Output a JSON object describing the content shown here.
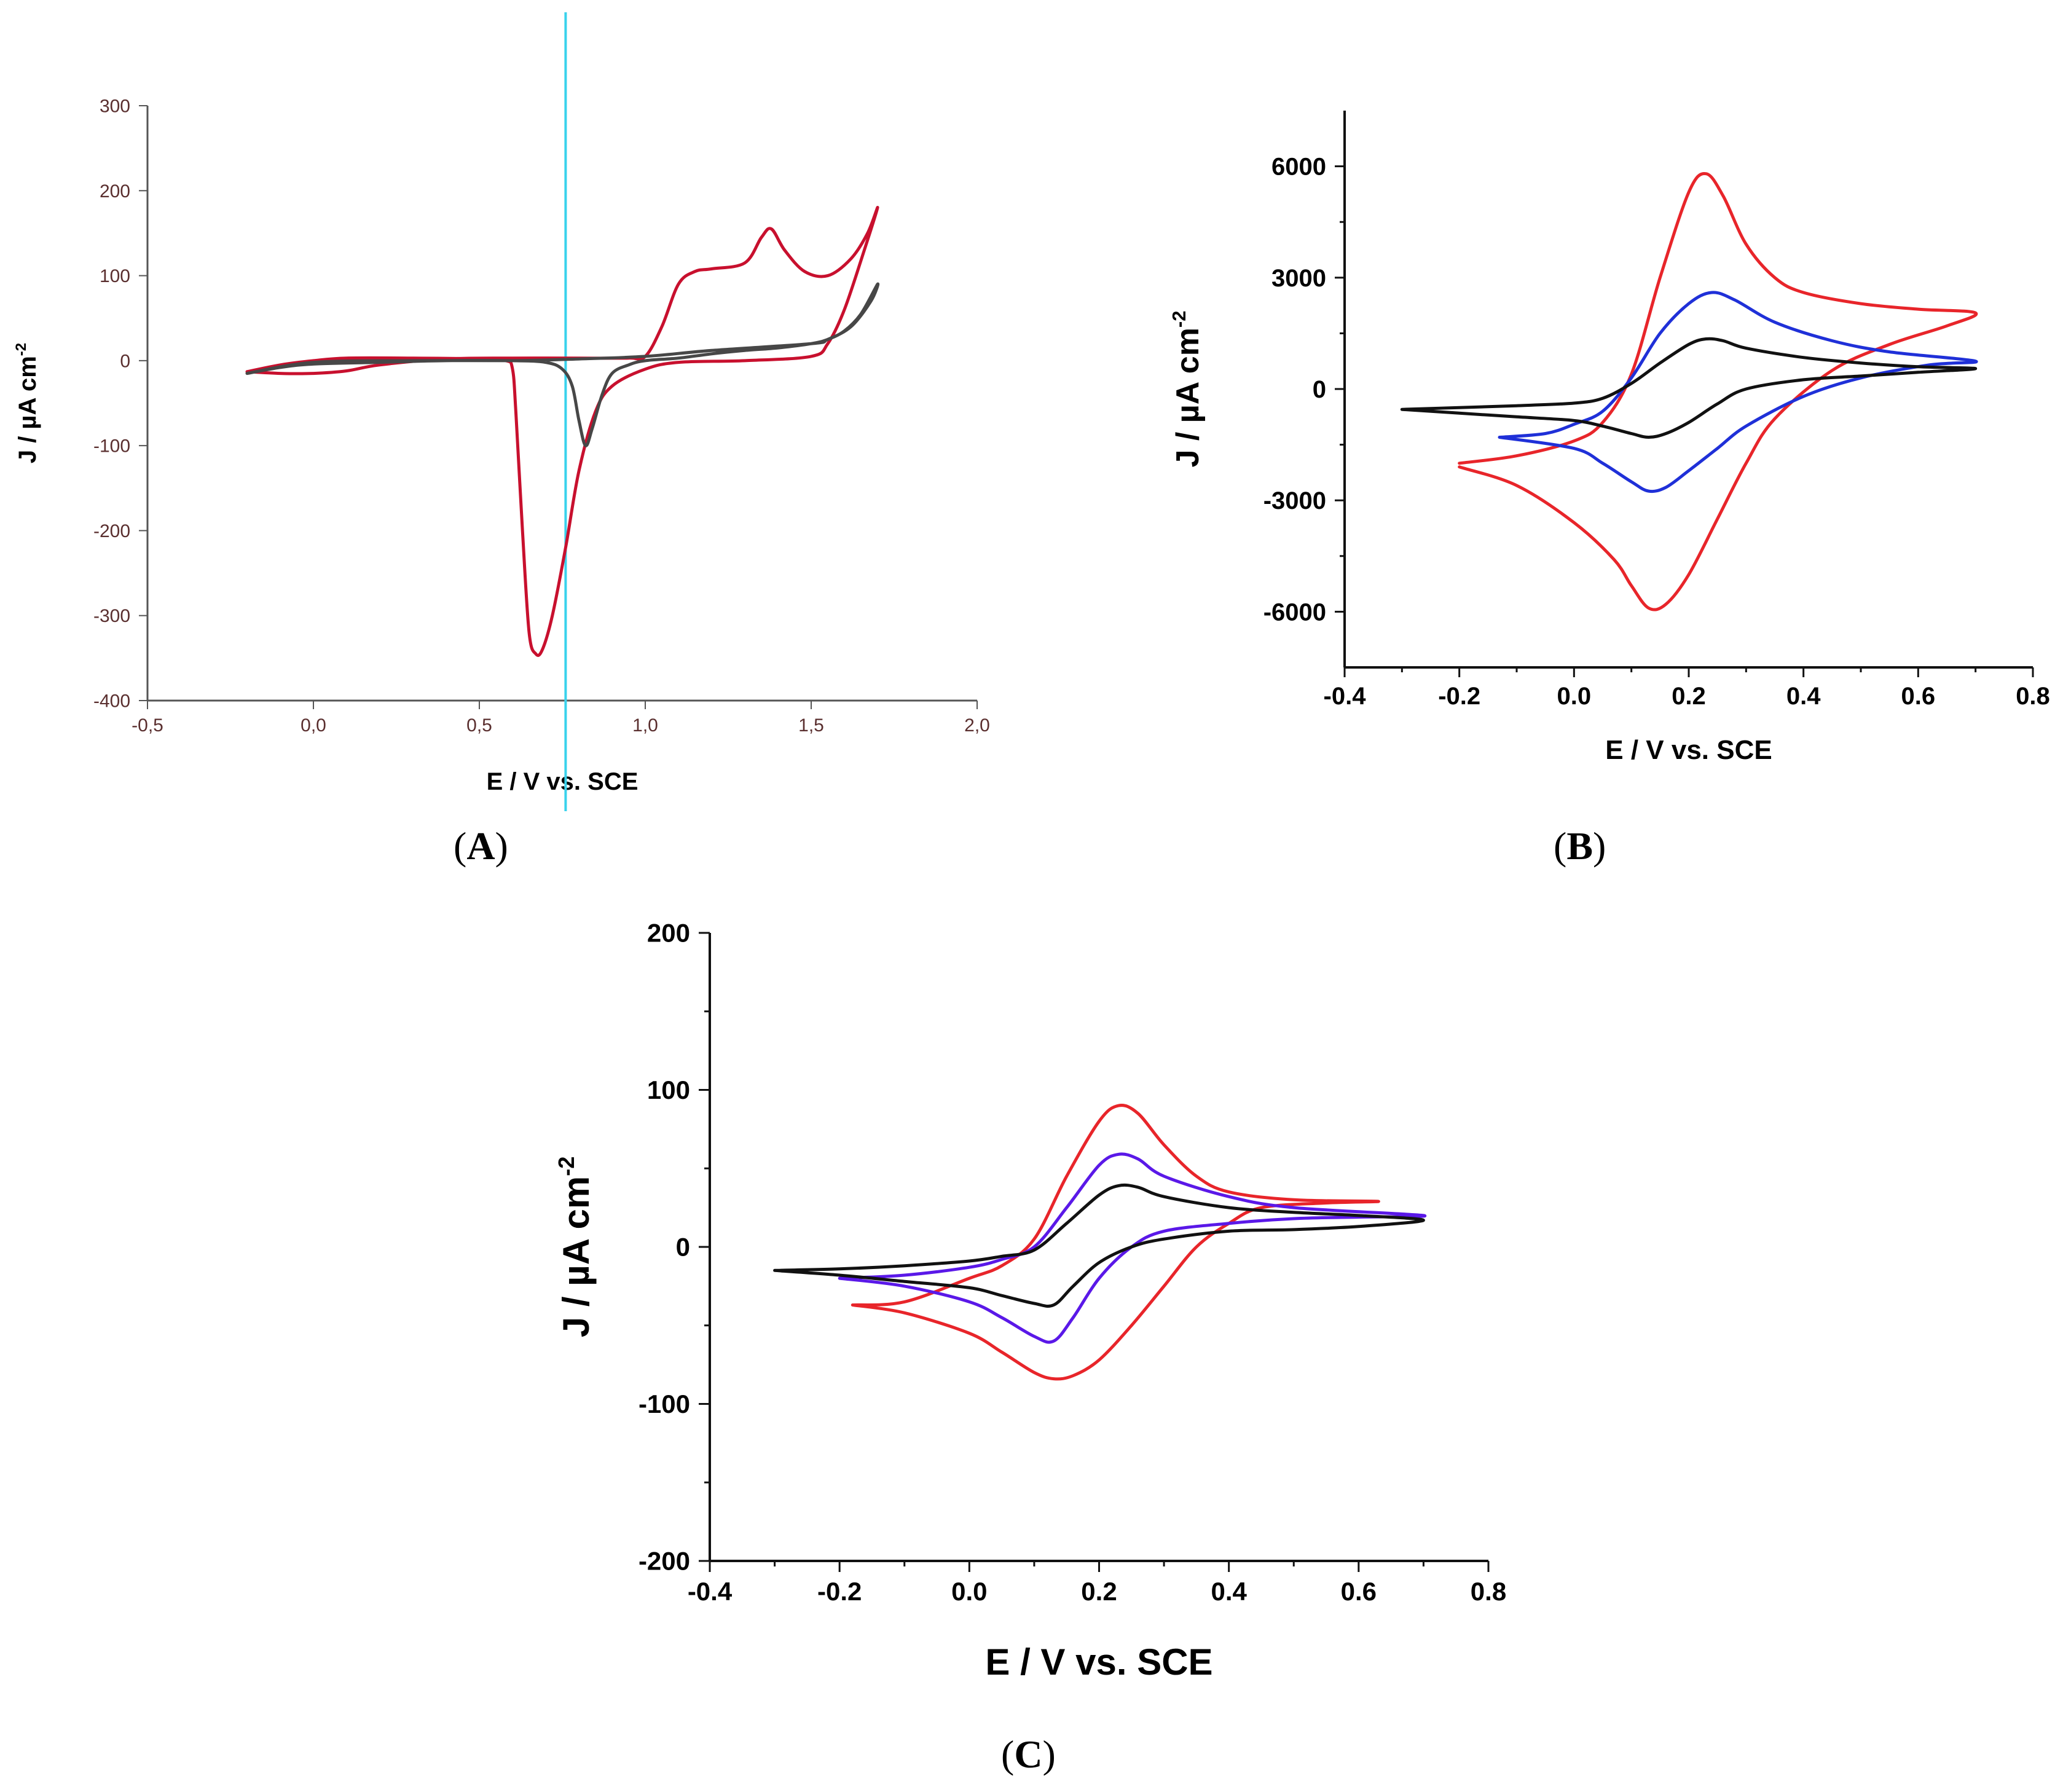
{
  "colors": {
    "red": "#e8252a",
    "darkred": "#c8102e",
    "blue": "#1f30d8",
    "violet": "#5a18e8",
    "black": "#111111",
    "gray": "#474747",
    "cyan": "#39d2ec",
    "axis_a": "#555555"
  },
  "captions": {
    "a": [
      "(",
      "A",
      ")"
    ],
    "b": [
      "(",
      "B",
      ")"
    ],
    "c": [
      "(",
      "C",
      ")"
    ]
  },
  "chart_data": [
    {
      "id": "A",
      "type": "line",
      "title": "",
      "xlabel": "E / V vs. SCE",
      "ylabel": "J / µA cm",
      "ylabel_sup": "-2",
      "xlim": [
        -0.5,
        2.0
      ],
      "ylim": [
        -400,
        300
      ],
      "xticks": [
        -0.5,
        0.0,
        0.5,
        1.0,
        1.5,
        2.0
      ],
      "xtick_labels": [
        "-0,5",
        "0,0",
        "0,5",
        "1,0",
        "1,5",
        "2,0"
      ],
      "yticks": [
        -400,
        -300,
        -200,
        -100,
        0,
        100,
        200,
        300
      ],
      "ytick_labels": [
        "-400",
        "-300",
        "-200",
        "-100",
        "0",
        "100",
        "200",
        "300"
      ],
      "vline_x": 0.76,
      "series": [
        {
          "name": "red",
          "color": "darkred",
          "x": [
            -0.2,
            -0.1,
            0.0,
            0.1,
            0.2,
            0.4,
            0.6,
            0.8,
            0.95,
            1.0,
            1.05,
            1.1,
            1.15,
            1.2,
            1.3,
            1.35,
            1.38,
            1.42,
            1.48,
            1.55,
            1.62,
            1.67,
            1.7,
            1.66,
            1.6,
            1.55,
            1.5,
            1.3,
            1.1,
            1.0,
            0.9,
            0.85,
            0.8,
            0.76,
            0.72,
            0.69,
            0.67,
            0.65,
            0.63,
            0.61,
            0.6,
            0.58,
            0.5,
            0.3,
            0.1,
            0.0,
            -0.1,
            -0.2
          ],
          "y": [
            -13,
            -15,
            -15,
            -12,
            -5,
            2,
            3,
            3,
            3,
            5,
            40,
            90,
            105,
            108,
            115,
            145,
            155,
            130,
            105,
            100,
            120,
            150,
            180,
            130,
            60,
            20,
            5,
            0,
            -2,
            -10,
            -30,
            -60,
            -130,
            -220,
            -300,
            -340,
            -345,
            -320,
            -200,
            -60,
            -10,
            0,
            2,
            3,
            3,
            0,
            -5,
            -13
          ]
        },
        {
          "name": "gray",
          "color": "gray",
          "x": [
            -0.2,
            -0.1,
            0.0,
            0.2,
            0.4,
            0.6,
            0.7,
            0.75,
            0.78,
            0.8,
            0.82,
            0.84,
            0.87,
            0.9,
            0.95,
            1.0,
            1.1,
            1.2,
            1.3,
            1.4,
            1.5,
            1.55,
            1.6,
            1.65,
            1.7,
            1.68,
            1.62,
            1.55,
            1.5,
            1.2,
            1.0,
            0.8,
            0.6,
            0.3,
            0.0,
            -0.2
          ],
          "y": [
            -15,
            -8,
            -4,
            -2,
            0,
            0,
            -2,
            -10,
            -30,
            -70,
            -100,
            -80,
            -40,
            -15,
            -5,
            0,
            3,
            8,
            12,
            15,
            20,
            25,
            35,
            55,
            90,
            70,
            40,
            25,
            20,
            12,
            5,
            2,
            0,
            0,
            -2,
            -15
          ]
        }
      ]
    },
    {
      "id": "B",
      "type": "line",
      "title": "",
      "xlabel": "E / V vs. SCE",
      "ylabel": "J / µA cm",
      "ylabel_sup": "-2",
      "xlim": [
        -0.4,
        0.8
      ],
      "ylim": [
        -7500,
        7500
      ],
      "xticks": [
        -0.4,
        -0.2,
        0.0,
        0.2,
        0.4,
        0.6,
        0.8
      ],
      "xtick_labels": [
        "-0.4",
        "-0.2",
        "0.0",
        "0.2",
        "0.4",
        "0.6",
        "0.8"
      ],
      "yticks": [
        -6000,
        -3000,
        0,
        3000,
        6000
      ],
      "ytick_labels": [
        "-6000",
        "-3000",
        "0",
        "3000",
        "6000"
      ],
      "series": [
        {
          "name": "red",
          "color": "red",
          "x": [
            -0.2,
            -0.1,
            0.0,
            0.05,
            0.1,
            0.15,
            0.2,
            0.23,
            0.26,
            0.3,
            0.35,
            0.4,
            0.5,
            0.6,
            0.7,
            0.65,
            0.55,
            0.45,
            0.35,
            0.3,
            0.25,
            0.2,
            0.16,
            0.13,
            0.1,
            0.07,
            0.0,
            -0.1,
            -0.2
          ],
          "y": [
            -2000,
            -1800,
            -1400,
            -900,
            400,
            3000,
            5300,
            5800,
            5200,
            3900,
            3000,
            2600,
            2300,
            2150,
            2050,
            1700,
            1200,
            500,
            -800,
            -2000,
            -3500,
            -5000,
            -5800,
            -5900,
            -5300,
            -4600,
            -3600,
            -2600,
            -2100
          ]
        },
        {
          "name": "blue",
          "color": "blue",
          "x": [
            -0.13,
            -0.05,
            0.0,
            0.05,
            0.1,
            0.15,
            0.2,
            0.24,
            0.28,
            0.35,
            0.45,
            0.55,
            0.7,
            0.62,
            0.5,
            0.4,
            0.3,
            0.25,
            0.2,
            0.16,
            0.13,
            0.1,
            0.05,
            0.0,
            -0.13
          ],
          "y": [
            -1300,
            -1200,
            -950,
            -600,
            300,
            1500,
            2300,
            2600,
            2400,
            1800,
            1300,
            1000,
            750,
            650,
            300,
            -200,
            -1000,
            -1600,
            -2200,
            -2650,
            -2750,
            -2500,
            -2000,
            -1600,
            -1300
          ]
        },
        {
          "name": "black",
          "color": "black",
          "x": [
            -0.3,
            -0.2,
            -0.1,
            0.0,
            0.05,
            0.1,
            0.15,
            0.2,
            0.23,
            0.26,
            0.3,
            0.4,
            0.5,
            0.6,
            0.7,
            0.6,
            0.5,
            0.4,
            0.3,
            0.25,
            0.2,
            0.16,
            0.13,
            0.1,
            0.05,
            0.0,
            -0.1,
            -0.2,
            -0.3
          ],
          "y": [
            -550,
            -500,
            -450,
            -380,
            -250,
            150,
            700,
            1200,
            1350,
            1300,
            1100,
            850,
            700,
            600,
            550,
            450,
            350,
            250,
            0,
            -400,
            -900,
            -1200,
            -1300,
            -1200,
            -1000,
            -850,
            -750,
            -650,
            -550
          ]
        }
      ]
    },
    {
      "id": "C",
      "type": "line",
      "title": "",
      "xlabel": "E / V vs. SCE",
      "ylabel": "J / µA cm",
      "ylabel_sup": "-2",
      "xlim": [
        -0.4,
        0.8
      ],
      "ylim": [
        -200,
        200
      ],
      "xticks": [
        -0.4,
        -0.2,
        0.0,
        0.2,
        0.4,
        0.6,
        0.8
      ],
      "xtick_labels": [
        "-0.4",
        "-0.2",
        "0.0",
        "0.2",
        "0.4",
        "0.6",
        "0.8"
      ],
      "yticks": [
        -200,
        -100,
        0,
        100,
        200
      ],
      "ytick_labels": [
        "-200",
        "-100",
        "0",
        "100",
        "200"
      ],
      "series": [
        {
          "name": "red",
          "color": "red",
          "x": [
            -0.18,
            -0.1,
            0.0,
            0.05,
            0.1,
            0.15,
            0.2,
            0.23,
            0.26,
            0.3,
            0.35,
            0.4,
            0.5,
            0.63,
            0.55,
            0.45,
            0.4,
            0.35,
            0.3,
            0.25,
            0.2,
            0.16,
            0.13,
            0.1,
            0.05,
            0.0,
            -0.1,
            -0.18
          ],
          "y": [
            -37,
            -35,
            -20,
            -12,
            5,
            45,
            80,
            90,
            85,
            65,
            45,
            35,
            30,
            29,
            28,
            25,
            15,
            0,
            -25,
            -50,
            -72,
            -82,
            -84,
            -80,
            -67,
            -55,
            -42,
            -37
          ]
        },
        {
          "name": "violet",
          "color": "violet",
          "x": [
            -0.2,
            -0.1,
            0.0,
            0.05,
            0.1,
            0.15,
            0.2,
            0.23,
            0.26,
            0.3,
            0.4,
            0.5,
            0.7,
            0.6,
            0.5,
            0.4,
            0.3,
            0.25,
            0.2,
            0.16,
            0.13,
            0.1,
            0.05,
            0.0,
            -0.1,
            -0.2
          ],
          "y": [
            -20,
            -18,
            -13,
            -8,
            0,
            25,
            52,
            59,
            56,
            45,
            32,
            25,
            20,
            19,
            18,
            15,
            10,
            0,
            -20,
            -45,
            -60,
            -57,
            -45,
            -35,
            -25,
            -20
          ]
        },
        {
          "name": "black",
          "color": "black",
          "x": [
            -0.3,
            -0.2,
            -0.1,
            0.0,
            0.05,
            0.1,
            0.15,
            0.2,
            0.23,
            0.26,
            0.3,
            0.4,
            0.5,
            0.6,
            0.7,
            0.6,
            0.5,
            0.4,
            0.3,
            0.25,
            0.2,
            0.16,
            0.13,
            0.1,
            0.05,
            0.0,
            -0.1,
            -0.2,
            -0.3
          ],
          "y": [
            -15,
            -14,
            -12,
            -9,
            -6,
            -2,
            15,
            33,
            39,
            38,
            32,
            25,
            22,
            20,
            17,
            13,
            11,
            10,
            5,
            0,
            -10,
            -25,
            -37,
            -36,
            -31,
            -26,
            -22,
            -18,
            -15
          ]
        }
      ]
    }
  ]
}
